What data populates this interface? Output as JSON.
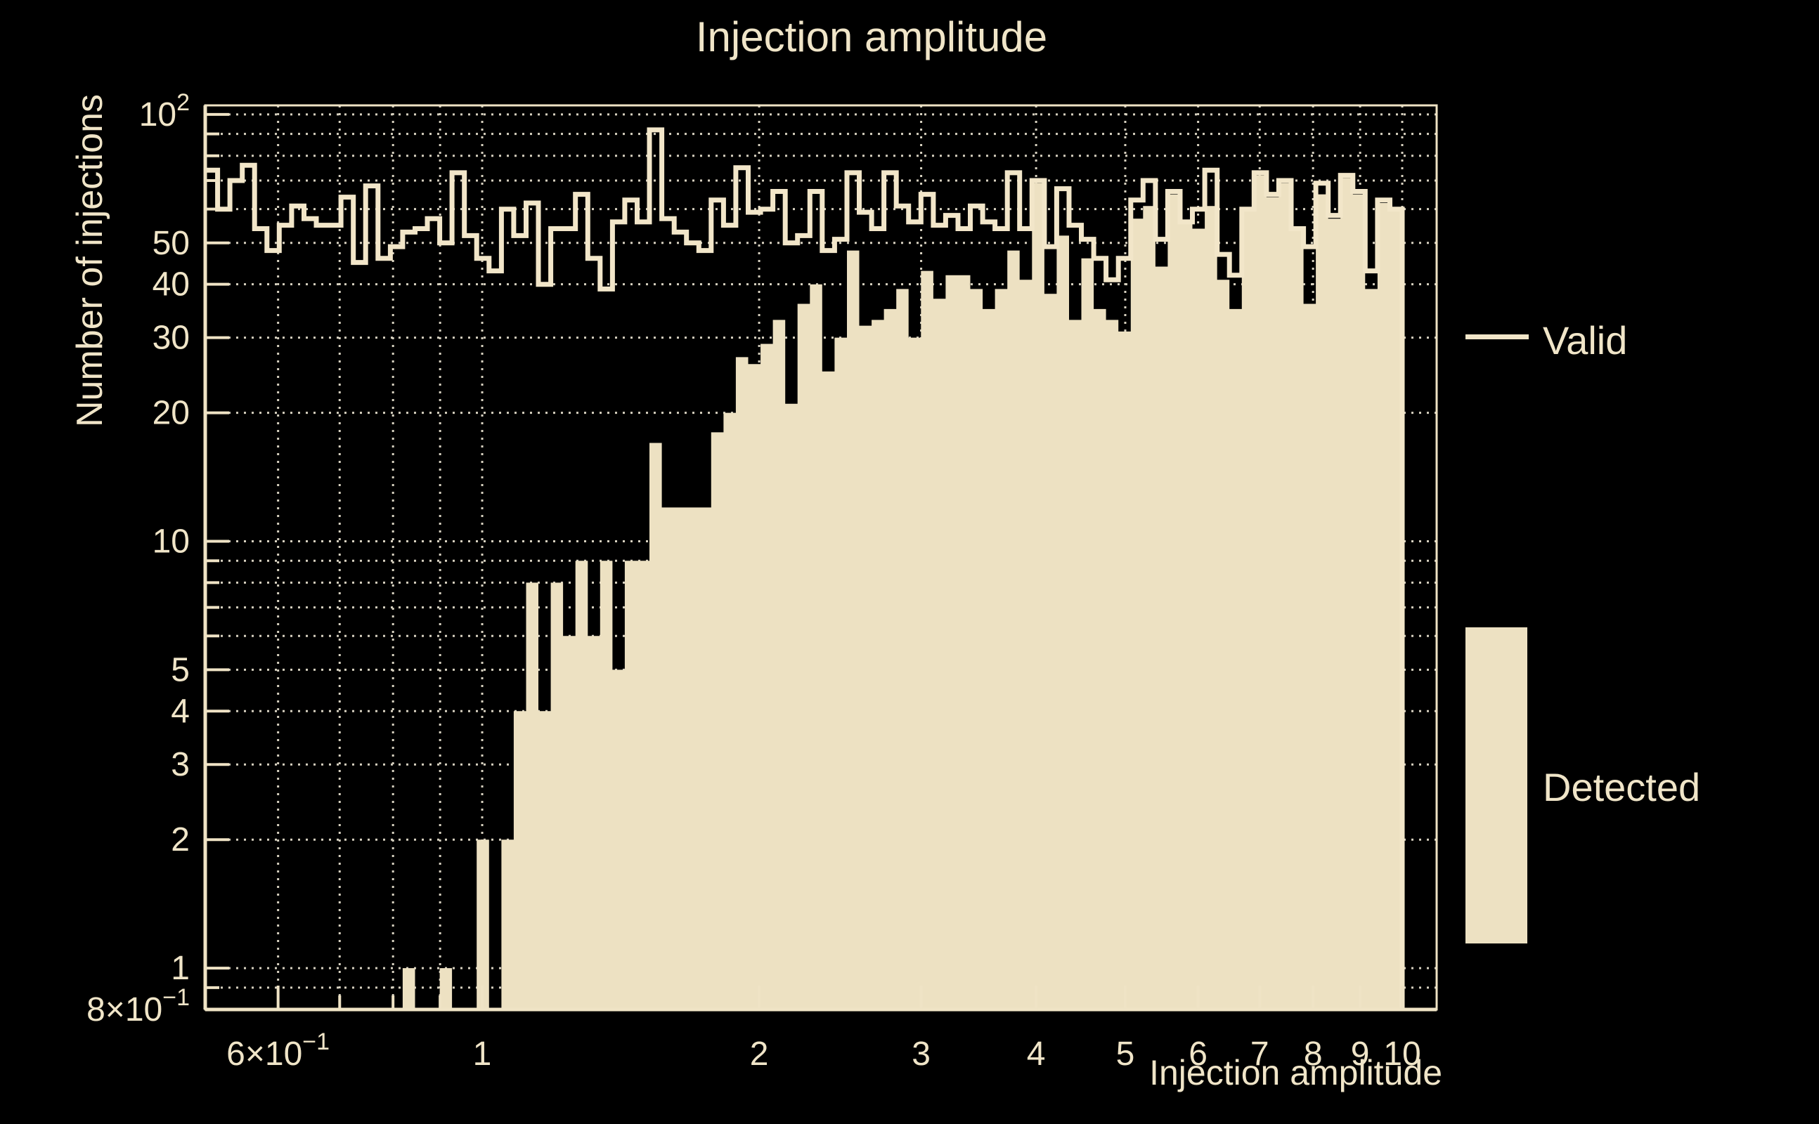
{
  "title": "Injection amplitude",
  "colors": {
    "background": "#000000",
    "fill": "#EDE1C2",
    "line": "#F2E6C9",
    "text": "#F0E5C8",
    "grid": "#EFE8D5",
    "axis": "#EFE3C5"
  },
  "legend": {
    "valid_label": "Valid",
    "detected_label": "Detected",
    "position": "right"
  },
  "chart_data": {
    "type": "bar",
    "subtype": "log-log step histograms",
    "title": "Injection amplitude",
    "xlabel": "Injection amplitude",
    "ylabel": "Number of injections",
    "xlim": [
      0.5,
      10.9
    ],
    "ylim": [
      0.8,
      105
    ],
    "grid": true,
    "legend_position": "right",
    "bins": {
      "count": 97,
      "min": 0.5,
      "max": 10.0,
      "spacing": "log"
    },
    "series": [
      {
        "name": "Valid",
        "style": "step-line",
        "values": [
          74,
          60,
          70,
          76,
          54,
          48,
          55,
          61,
          57,
          55,
          55,
          64,
          45,
          68,
          46,
          49,
          53,
          54,
          57,
          50,
          73,
          52,
          46,
          43,
          60,
          52,
          62,
          40,
          54,
          54,
          65,
          46,
          39,
          56,
          63,
          56,
          92,
          57,
          53,
          50,
          48,
          63,
          55,
          75,
          59,
          60,
          66,
          50,
          52,
          66,
          48,
          51,
          73,
          59,
          54,
          73,
          61,
          56,
          65,
          55,
          58,
          54,
          61,
          56,
          54,
          73,
          54,
          70,
          49,
          67,
          55,
          51,
          46,
          41,
          46,
          63,
          70,
          51,
          66,
          56,
          60,
          74,
          47,
          42,
          60,
          73,
          65,
          70,
          54,
          49,
          69,
          58,
          72,
          66,
          43,
          63,
          60
        ]
      },
      {
        "name": "Detected",
        "style": "filled",
        "values": [
          0,
          0,
          0,
          0,
          0,
          0,
          0,
          0,
          0,
          0,
          0,
          0,
          0,
          0,
          0,
          0,
          1,
          0,
          0,
          1,
          0,
          0,
          2,
          0,
          2,
          4,
          8,
          4,
          8,
          6,
          9,
          6,
          9,
          5,
          9,
          9,
          17,
          12,
          12,
          12,
          12,
          18,
          20,
          27,
          26,
          29,
          33,
          21,
          36,
          40,
          25,
          30,
          48,
          32,
          33,
          35,
          39,
          30,
          43,
          37,
          42,
          42,
          39,
          35,
          39,
          48,
          41,
          69,
          38,
          52,
          33,
          46,
          35,
          33,
          31,
          57,
          61,
          44,
          65,
          56,
          54,
          61,
          41,
          35,
          60,
          72,
          64,
          69,
          54,
          36,
          65,
          57,
          71,
          65,
          39,
          62,
          60
        ]
      }
    ],
    "x_ticks": [
      {
        "v": 0.6,
        "label": "6×10^−1"
      },
      {
        "v": 1,
        "label": "1"
      },
      {
        "v": 2,
        "label": "2"
      },
      {
        "v": 3,
        "label": "3"
      },
      {
        "v": 4,
        "label": "4"
      },
      {
        "v": 5,
        "label": "5"
      },
      {
        "v": 6,
        "label": "6"
      },
      {
        "v": 7,
        "label": "7"
      },
      {
        "v": 8,
        "label": "8"
      },
      {
        "v": 9,
        "label": "9"
      },
      {
        "v": 10,
        "label": "10"
      }
    ],
    "y_ticks": [
      {
        "v": 100,
        "label": "10^2"
      },
      {
        "v": 50,
        "label": "50"
      },
      {
        "v": 40,
        "label": "40"
      },
      {
        "v": 30,
        "label": "30"
      },
      {
        "v": 20,
        "label": "20"
      },
      {
        "v": 10,
        "label": "10"
      },
      {
        "v": 5,
        "label": "5"
      },
      {
        "v": 4,
        "label": "4"
      },
      {
        "v": 3,
        "label": "3"
      },
      {
        "v": 2,
        "label": "2"
      },
      {
        "v": 1,
        "label": "1"
      },
      {
        "v": 0.8,
        "label": "8×10^−1"
      }
    ],
    "x_grid": [
      0.6,
      0.7,
      0.8,
      0.9,
      1,
      2,
      3,
      4,
      5,
      6,
      7,
      8,
      9,
      10
    ],
    "y_grid": [
      0.9,
      1,
      2,
      3,
      4,
      5,
      6,
      7,
      8,
      9,
      10,
      20,
      30,
      40,
      50,
      60,
      70,
      80,
      90,
      100
    ]
  }
}
